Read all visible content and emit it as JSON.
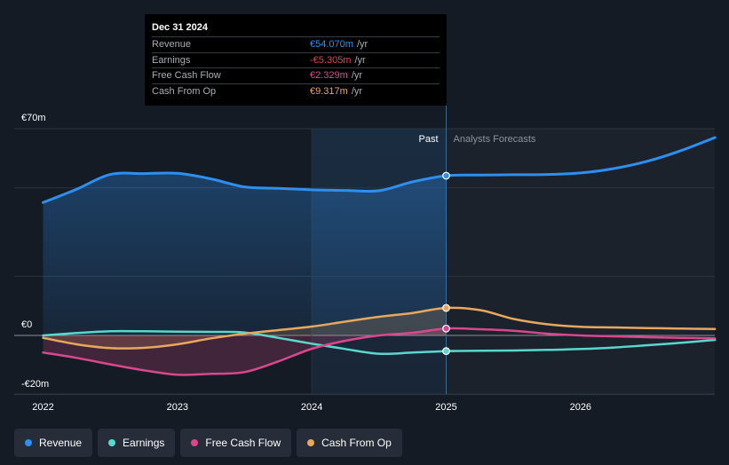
{
  "chart_data": {
    "type": "line",
    "currency_prefix": "€",
    "y_unit": "m",
    "ylim": [
      -20,
      70
    ],
    "y_tick_labels": [
      {
        "value": 70,
        "label": "€70m"
      },
      {
        "value": 0,
        "label": "€0"
      },
      {
        "value": -20,
        "label": "-€20m"
      }
    ],
    "x_ticks": [
      {
        "value": 2022,
        "label": "2022"
      },
      {
        "value": 2023,
        "label": "2023"
      },
      {
        "value": 2024,
        "label": "2024"
      },
      {
        "value": 2025,
        "label": "2025"
      },
      {
        "value": 2026,
        "label": "2026"
      }
    ],
    "xlim": [
      2021.8,
      2027.0
    ],
    "divider_x": 2025.0,
    "past_band_start": 2024.0,
    "region_labels": {
      "past": "Past",
      "forecast": "Analysts Forecasts"
    },
    "series": [
      {
        "name": "Revenue",
        "color": "#2d8ff0",
        "fill": true,
        "points": [
          [
            2022.0,
            45.0
          ],
          [
            2022.25,
            49.5
          ],
          [
            2022.5,
            54.5
          ],
          [
            2022.75,
            54.8
          ],
          [
            2023.0,
            54.9
          ],
          [
            2023.25,
            53.0
          ],
          [
            2023.5,
            50.3
          ],
          [
            2023.75,
            49.8
          ],
          [
            2024.0,
            49.3
          ],
          [
            2024.25,
            49.1
          ],
          [
            2024.5,
            49.0
          ],
          [
            2024.75,
            52.0
          ],
          [
            2025.0,
            54.07
          ],
          [
            2025.25,
            54.3
          ],
          [
            2025.5,
            54.4
          ],
          [
            2025.75,
            54.5
          ],
          [
            2026.0,
            55.0
          ],
          [
            2026.25,
            56.5
          ],
          [
            2026.5,
            59.0
          ],
          [
            2026.75,
            62.6
          ],
          [
            2027.0,
            67.0
          ]
        ],
        "marker": [
          2025.0,
          54.07
        ]
      },
      {
        "name": "Earnings",
        "color": "#5ad8cf",
        "fill": false,
        "points": [
          [
            2022.0,
            0.0
          ],
          [
            2022.25,
            0.8
          ],
          [
            2022.5,
            1.4
          ],
          [
            2022.75,
            1.4
          ],
          [
            2023.0,
            1.3
          ],
          [
            2023.25,
            1.2
          ],
          [
            2023.5,
            1.0
          ],
          [
            2023.75,
            -0.8
          ],
          [
            2024.0,
            -2.8
          ],
          [
            2024.25,
            -4.6
          ],
          [
            2024.5,
            -6.2
          ],
          [
            2024.75,
            -5.8
          ],
          [
            2025.0,
            -5.305
          ],
          [
            2025.25,
            -5.2
          ],
          [
            2025.5,
            -5.1
          ],
          [
            2025.75,
            -4.9
          ],
          [
            2026.0,
            -4.6
          ],
          [
            2026.25,
            -4.1
          ],
          [
            2026.5,
            -3.3
          ],
          [
            2026.75,
            -2.5
          ],
          [
            2027.0,
            -1.5
          ]
        ],
        "marker": [
          2025.0,
          -5.305
        ]
      },
      {
        "name": "Free Cash Flow",
        "color": "#d9488f",
        "fill": true,
        "points": [
          [
            2022.0,
            -5.8
          ],
          [
            2022.25,
            -7.6
          ],
          [
            2022.5,
            -9.8
          ],
          [
            2022.75,
            -11.8
          ],
          [
            2023.0,
            -13.3
          ],
          [
            2023.25,
            -13.0
          ],
          [
            2023.5,
            -12.4
          ],
          [
            2023.75,
            -8.8
          ],
          [
            2024.0,
            -4.5
          ],
          [
            2024.25,
            -1.8
          ],
          [
            2024.5,
            0.0
          ],
          [
            2024.75,
            0.9
          ],
          [
            2025.0,
            2.329
          ],
          [
            2025.25,
            2.1
          ],
          [
            2025.5,
            1.6
          ],
          [
            2025.75,
            0.6
          ],
          [
            2026.0,
            0.0
          ],
          [
            2026.25,
            -0.3
          ],
          [
            2026.5,
            -0.6
          ],
          [
            2026.75,
            -0.8
          ],
          [
            2027.0,
            -1.0
          ]
        ],
        "marker": [
          2025.0,
          2.329
        ]
      },
      {
        "name": "Cash From Op",
        "color": "#e8a75e",
        "fill": true,
        "points": [
          [
            2022.0,
            -0.8
          ],
          [
            2022.25,
            -3.0
          ],
          [
            2022.5,
            -4.3
          ],
          [
            2022.75,
            -4.2
          ],
          [
            2023.0,
            -3.0
          ],
          [
            2023.25,
            -1.0
          ],
          [
            2023.5,
            0.6
          ],
          [
            2023.75,
            1.8
          ],
          [
            2024.0,
            3.0
          ],
          [
            2024.25,
            4.7
          ],
          [
            2024.5,
            6.3
          ],
          [
            2024.75,
            7.6
          ],
          [
            2025.0,
            9.317
          ],
          [
            2025.25,
            8.6
          ],
          [
            2025.5,
            5.6
          ],
          [
            2025.75,
            3.8
          ],
          [
            2026.0,
            2.9
          ],
          [
            2026.25,
            2.7
          ],
          [
            2026.5,
            2.5
          ],
          [
            2026.75,
            2.3
          ],
          [
            2027.0,
            2.2
          ]
        ],
        "marker": [
          2025.0,
          9.317
        ]
      }
    ]
  },
  "tooltip": {
    "date": "Dec 31 2024",
    "rows": [
      {
        "name": "Revenue",
        "value": "€54.070m",
        "unit": "/yr",
        "color": "#2d8ff0"
      },
      {
        "name": "Earnings",
        "value": "-€5.305m",
        "unit": "/yr",
        "color": "#e5414a"
      },
      {
        "name": "Free Cash Flow",
        "value": "€2.329m",
        "unit": "/yr",
        "color": "#d9488f"
      },
      {
        "name": "Cash From Op",
        "value": "€9.317m",
        "unit": "/yr",
        "color": "#e8a75e"
      }
    ]
  },
  "legend": [
    {
      "label": "Revenue",
      "color": "#2d8ff0"
    },
    {
      "label": "Earnings",
      "color": "#5ad8cf"
    },
    {
      "label": "Free Cash Flow",
      "color": "#d9488f"
    },
    {
      "label": "Cash From Op",
      "color": "#e8a75e"
    }
  ]
}
